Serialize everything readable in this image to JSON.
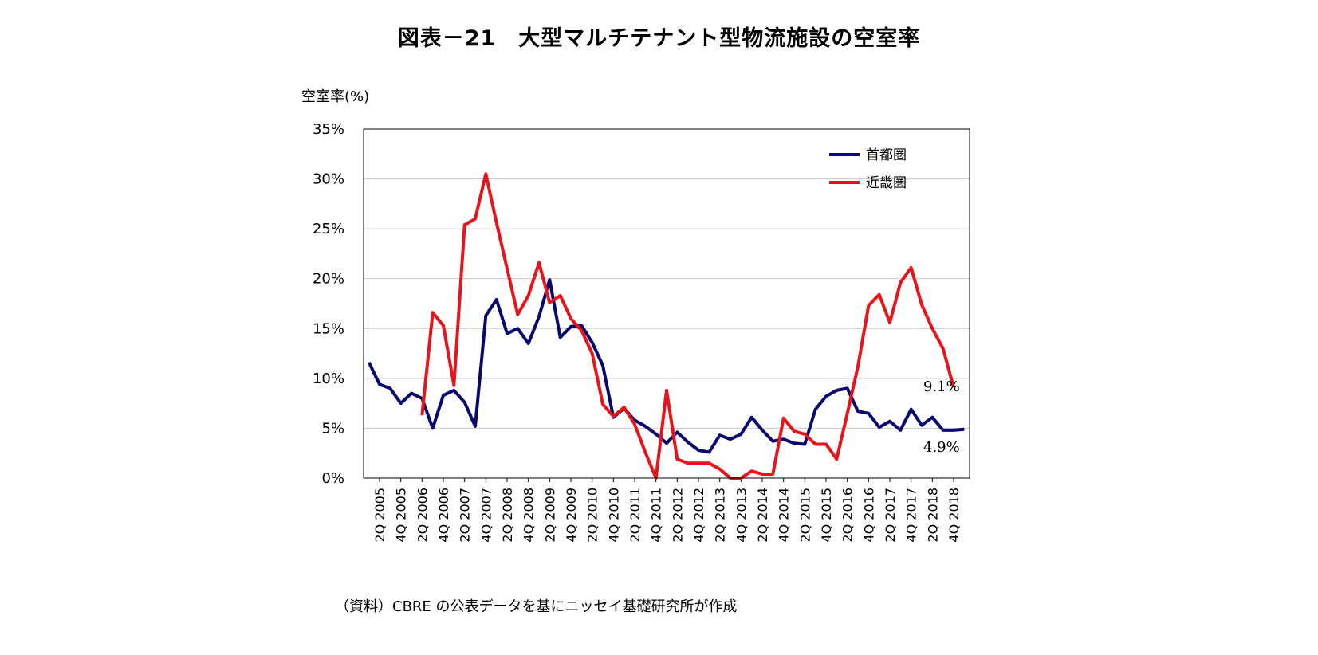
{
  "title": "図表－21　大型マルチテナント型物流施設の空室率",
  "source": "（資料）CBRE の公表データを基にニッセイ基礎研究所が作成",
  "chart_data": {
    "type": "line",
    "ylabel": "空室率(%)",
    "ylim": [
      0,
      35
    ],
    "yticks": [
      0,
      5,
      10,
      15,
      20,
      25,
      30,
      35
    ],
    "ytick_labels": [
      "0%",
      "5%",
      "10%",
      "15%",
      "20%",
      "25%",
      "30%",
      "35%"
    ],
    "x": [
      "1Q 2005",
      "2Q 2005",
      "3Q 2005",
      "4Q 2005",
      "1Q 2006",
      "2Q 2006",
      "3Q 2006",
      "4Q 2006",
      "1Q 2007",
      "2Q 2007",
      "3Q 2007",
      "4Q 2007",
      "1Q 2008",
      "2Q 2008",
      "3Q 2008",
      "4Q 2008",
      "1Q 2009",
      "2Q 2009",
      "3Q 2009",
      "4Q 2009",
      "1Q 2010",
      "2Q 2010",
      "3Q 2010",
      "4Q 2010",
      "1Q 2011",
      "2Q 2011",
      "3Q 2011",
      "4Q 2011",
      "1Q 2012",
      "2Q 2012",
      "3Q 2012",
      "4Q 2012",
      "1Q 2013",
      "2Q 2013",
      "3Q 2013",
      "4Q 2013",
      "1Q 2014",
      "2Q 2014",
      "3Q 2014",
      "4Q 2014",
      "1Q 2015",
      "2Q 2015",
      "3Q 2015",
      "4Q 2015",
      "1Q 2016",
      "2Q 2016",
      "3Q 2016",
      "4Q 2016",
      "1Q 2017",
      "2Q 2017",
      "3Q 2017",
      "4Q 2017",
      "1Q 2018",
      "2Q 2018",
      "3Q 2018",
      "4Q 2018",
      "1Q 2019"
    ],
    "xtick_labels": [
      "2Q 2005",
      "4Q 2005",
      "2Q 2006",
      "4Q 2006",
      "2Q 2007",
      "4Q 2007",
      "2Q 2008",
      "4Q 2008",
      "2Q 2009",
      "4Q 2009",
      "2Q 2010",
      "4Q 2010",
      "2Q 2011",
      "4Q 2011",
      "2Q 2012",
      "4Q 2012",
      "2Q 2013",
      "4Q 2013",
      "2Q 2014",
      "4Q 2014",
      "2Q 2015",
      "4Q 2015",
      "2Q 2016",
      "4Q 2016",
      "2Q 2017",
      "4Q 2017",
      "2Q 2018",
      "4Q 2018"
    ],
    "series": [
      {
        "name": "首都圏",
        "color": "#0a0a6e",
        "values": [
          11.6,
          9.4,
          9.0,
          7.5,
          8.5,
          8.0,
          5.0,
          8.3,
          8.8,
          7.6,
          5.2,
          16.3,
          17.9,
          14.5,
          15.0,
          13.5,
          16.2,
          19.9,
          14.1,
          15.2,
          15.3,
          13.6,
          11.3,
          6.1,
          7.0,
          5.8,
          5.2,
          4.4,
          3.5,
          4.6,
          3.6,
          2.8,
          2.6,
          4.3,
          3.9,
          4.4,
          6.1,
          4.8,
          3.7,
          3.9,
          3.5,
          3.4,
          6.9,
          8.2,
          8.8,
          9.0,
          6.7,
          6.5,
          5.1,
          5.7,
          4.8,
          6.9,
          5.3,
          6.1,
          4.8,
          4.8,
          4.9
        ]
      },
      {
        "name": "近畿圏",
        "color": "#e8141c",
        "values": [
          null,
          null,
          null,
          null,
          null,
          6.3,
          16.6,
          15.3,
          9.3,
          25.4,
          26.0,
          30.5,
          25.6,
          21.0,
          16.4,
          18.3,
          21.6,
          17.6,
          18.3,
          16.0,
          14.8,
          12.5,
          7.4,
          6.2,
          7.1,
          5.4,
          2.6,
          0.0,
          8.8,
          1.9,
          1.5,
          1.5,
          1.5,
          0.9,
          0.0,
          0.0,
          0.7,
          0.4,
          0.4,
          6.0,
          4.7,
          4.4,
          3.4,
          3.4,
          1.9,
          6.5,
          11.2,
          17.3,
          18.4,
          15.6,
          19.6,
          21.1,
          17.4,
          15.0,
          13.0,
          9.1,
          null
        ]
      }
    ],
    "annotations": [
      "9.1%",
      "4.9%"
    ]
  }
}
